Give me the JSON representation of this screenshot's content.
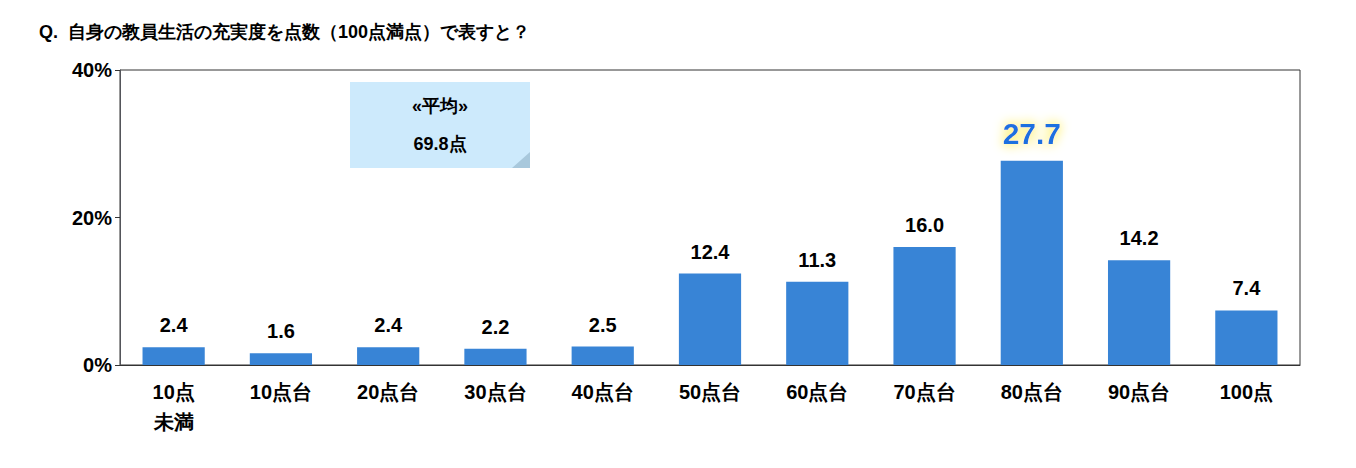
{
  "chart_data": {
    "type": "bar",
    "title": "Q.  自身の教員生活の充実度を点数（100点満点）で表すと？",
    "categories": [
      "10点\n未満",
      "10点台",
      "20点台",
      "30点台",
      "40点台",
      "50点台",
      "60点台",
      "70点台",
      "80点台",
      "90点台",
      "100点"
    ],
    "values": [
      2.4,
      1.6,
      2.4,
      2.2,
      2.5,
      12.4,
      11.3,
      16.0,
      27.7,
      14.2,
      7.4
    ],
    "value_labels": [
      "2.4",
      "1.6",
      "2.4",
      "2.2",
      "2.5",
      "12.4",
      "11.3",
      "16.0",
      "27.7",
      "14.2",
      "7.4"
    ],
    "color": "#3884d6",
    "ylim": [
      0,
      40
    ],
    "yticks": [
      {
        "value": 0,
        "label": "0%"
      },
      {
        "value": 20,
        "label": "20%"
      },
      {
        "value": 40,
        "label": "40%"
      }
    ],
    "grid": false,
    "data_labels": true,
    "annotation": {
      "label": "«平均»",
      "text": "69.8点"
    }
  }
}
